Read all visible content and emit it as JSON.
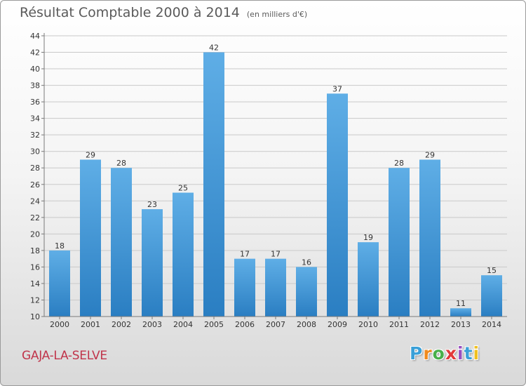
{
  "header": {
    "title": "Résultat Comptable 2000 à 2014",
    "subtitle": "(en milliers d'€)"
  },
  "footer": {
    "commune": "GAJA-LA-SELVE",
    "logo": [
      "P",
      "r",
      "o",
      "x",
      "i",
      "t",
      "i"
    ],
    "logo_colors": [
      "#3aa0d8",
      "#f08a1d",
      "#48b04a",
      "#e23a3a",
      "#9a4fc0",
      "#3aa0d8",
      "#f0c020"
    ]
  },
  "colors": {
    "bar_light": "#5faee6",
    "bar_dark": "#2a7ec2",
    "grid": "#c9c9c9",
    "axis": "#7a7a7a",
    "text": "#333333"
  },
  "chart_data": {
    "type": "bar",
    "categories": [
      "2000",
      "2001",
      "2002",
      "2003",
      "2004",
      "2005",
      "2006",
      "2007",
      "2008",
      "2009",
      "2010",
      "2011",
      "2012",
      "2013",
      "2014"
    ],
    "values": [
      18,
      29,
      28,
      23,
      25,
      42,
      17,
      17,
      16,
      37,
      19,
      28,
      29,
      11,
      15
    ],
    "ylim": [
      10,
      44
    ],
    "yticks": [
      10,
      12,
      14,
      16,
      18,
      20,
      22,
      24,
      26,
      28,
      30,
      32,
      34,
      36,
      38,
      40,
      42,
      44
    ],
    "grid": true,
    "data_labels": true
  }
}
